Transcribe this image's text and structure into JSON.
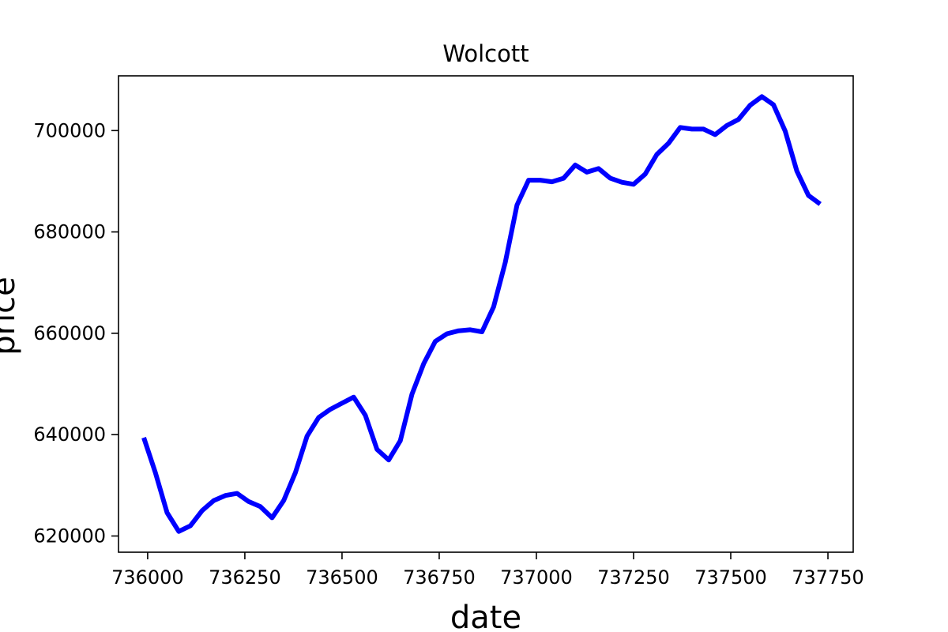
{
  "chart_data": {
    "type": "line",
    "title": "Wolcott",
    "xlabel": "date",
    "ylabel": "price",
    "xlim": [
      735925,
      737815
    ],
    "ylim": [
      616800,
      710800
    ],
    "x_ticks": [
      736000,
      736250,
      736500,
      736750,
      737000,
      737250,
      737500,
      737750
    ],
    "y_ticks": [
      620000,
      640000,
      660000,
      680000,
      700000
    ],
    "grid": false,
    "series": [
      {
        "color": "#0000ff",
        "x": [
          735990,
          736020,
          736050,
          736080,
          736110,
          736140,
          736170,
          736200,
          736230,
          736260,
          736290,
          736320,
          736350,
          736380,
          736410,
          736440,
          736470,
          736500,
          736530,
          736560,
          736590,
          736620,
          736650,
          736680,
          736710,
          736740,
          736770,
          736800,
          736830,
          736860,
          736890,
          736920,
          736950,
          736980,
          737010,
          737040,
          737070,
          737100,
          737130,
          737160,
          737190,
          737220,
          737250,
          737280,
          737310,
          737340,
          737370,
          737400,
          737430,
          737460,
          737490,
          737520,
          737550,
          737580,
          737610,
          737640,
          737670,
          737700,
          737730
        ],
        "values": [
          639400,
          632500,
          624600,
          620900,
          622000,
          625000,
          627000,
          628000,
          628400,
          626800,
          625800,
          623600,
          627000,
          632500,
          639700,
          643400,
          645000,
          646200,
          647400,
          643800,
          637100,
          635000,
          638800,
          648000,
          654000,
          658400,
          659900,
          660500,
          660700,
          660300,
          665200,
          674000,
          685300,
          690200,
          690200,
          689900,
          690600,
          693200,
          691800,
          692500,
          690600,
          689800,
          689400,
          691400,
          695300,
          697500,
          700600,
          700300,
          700300,
          699200,
          701000,
          702200,
          705000,
          706700,
          705100,
          699900,
          692000,
          687200,
          685500
        ]
      }
    ]
  }
}
